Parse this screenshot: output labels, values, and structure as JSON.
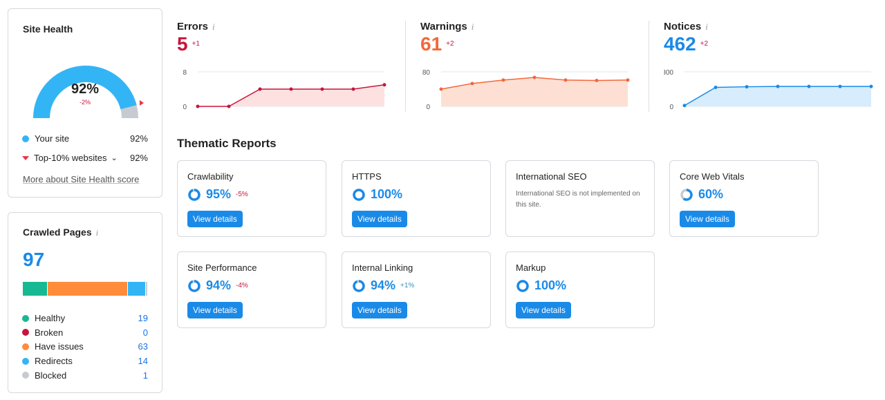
{
  "site_health": {
    "title": "Site Health",
    "score": "92%",
    "delta": "-2%",
    "your_site_label": "Your site",
    "your_site_value": "92%",
    "top10_label": "Top-10% websites",
    "top10_value": "92%",
    "more_link": "More about Site Health score",
    "score_fraction": 0.92,
    "colors": {
      "your_site": "#33b5f5",
      "top10": "#e8354b",
      "track": "#c7cbd1"
    }
  },
  "crawled_pages": {
    "title": "Crawled Pages",
    "info_icon": "i",
    "total": "97",
    "items": [
      {
        "label": "Healthy",
        "value": "19",
        "count": 19,
        "color": "#16b991"
      },
      {
        "label": "Broken",
        "value": "0",
        "count": 0,
        "color": "#c8143c"
      },
      {
        "label": "Have issues",
        "value": "63",
        "count": 63,
        "color": "#ff8c3b"
      },
      {
        "label": "Redirects",
        "value": "14",
        "count": 14,
        "color": "#33b5f5"
      },
      {
        "label": "Blocked",
        "value": "1",
        "count": 1,
        "color": "#c7cbd1"
      }
    ]
  },
  "metrics": {
    "errors": {
      "label": "Errors",
      "value": "5",
      "delta": "+1",
      "color": "#c8143c",
      "fill": "#fde1e1",
      "y_max": "8",
      "y_min": "0",
      "ymax_num": 8,
      "points": [
        0,
        0,
        4,
        4,
        4,
        4,
        5
      ]
    },
    "warnings": {
      "label": "Warnings",
      "value": "61",
      "delta": "+2",
      "color": "#f2683c",
      "fill": "#fde0d3",
      "y_max": "80",
      "y_min": "0",
      "ymax_num": 80,
      "points": [
        40,
        53,
        61,
        67,
        61,
        60,
        61
      ]
    },
    "notices": {
      "label": "Notices",
      "value": "462",
      "delta": "+2",
      "color": "#1a8ae8",
      "fill": "#d7ecfc",
      "y_max": "800",
      "y_min": "0",
      "ymax_num": 800,
      "points": [
        20,
        440,
        455,
        462,
        462,
        462,
        462
      ]
    }
  },
  "thematic": {
    "title": "Thematic Reports",
    "view_details": "View details",
    "reports": [
      {
        "name": "Crawlability",
        "pct": "95%",
        "delta": "-5%",
        "frac": 0.95
      },
      {
        "name": "HTTPS",
        "pct": "100%",
        "delta": "",
        "frac": 1.0
      },
      {
        "name": "International SEO",
        "message": "International SEO is not implemented on this site."
      },
      {
        "name": "Core Web Vitals",
        "pct": "60%",
        "delta": "",
        "frac": 0.6
      },
      {
        "name": "Site Performance",
        "pct": "94%",
        "delta": "-4%",
        "frac": 0.94
      },
      {
        "name": "Internal Linking",
        "pct": "94%",
        "delta": "+1%",
        "frac": 0.94
      },
      {
        "name": "Markup",
        "pct": "100%",
        "delta": "",
        "frac": 1.0
      }
    ]
  }
}
